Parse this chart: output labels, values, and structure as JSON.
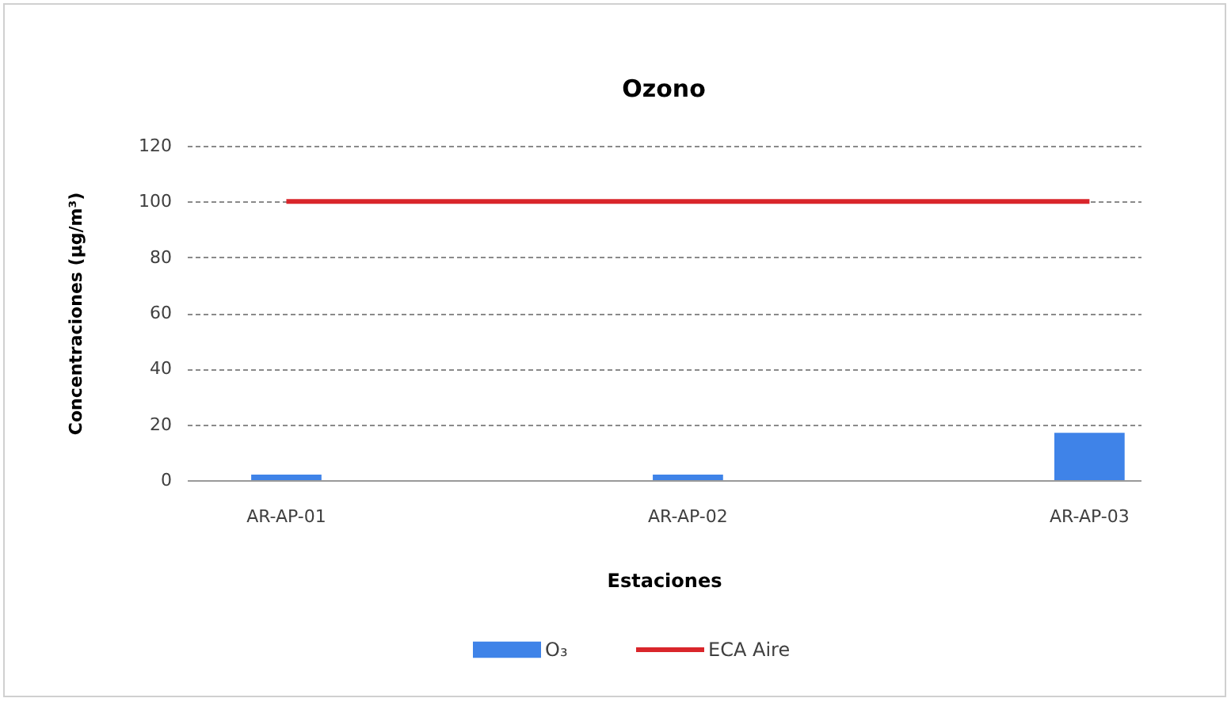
{
  "chart_data": {
    "type": "bar",
    "title": "Ozono",
    "xlabel": "Estaciones",
    "ylabel": "Concentraciones (µg/m³)",
    "categories": [
      "AR-AP-01",
      "AR-AP-02",
      "AR-AP-03"
    ],
    "series": [
      {
        "name": "O₃",
        "color": "#3f83e8",
        "values": [
          2,
          2,
          17
        ]
      },
      {
        "name": "ECA Aire",
        "type": "line",
        "color": "#d9262b",
        "values": [
          100,
          100,
          100
        ]
      }
    ],
    "ylim": [
      0,
      120
    ],
    "yticks": [
      0,
      20,
      40,
      60,
      80,
      100,
      120
    ],
    "grid": "y",
    "legend": "bottom",
    "marker": "none"
  }
}
